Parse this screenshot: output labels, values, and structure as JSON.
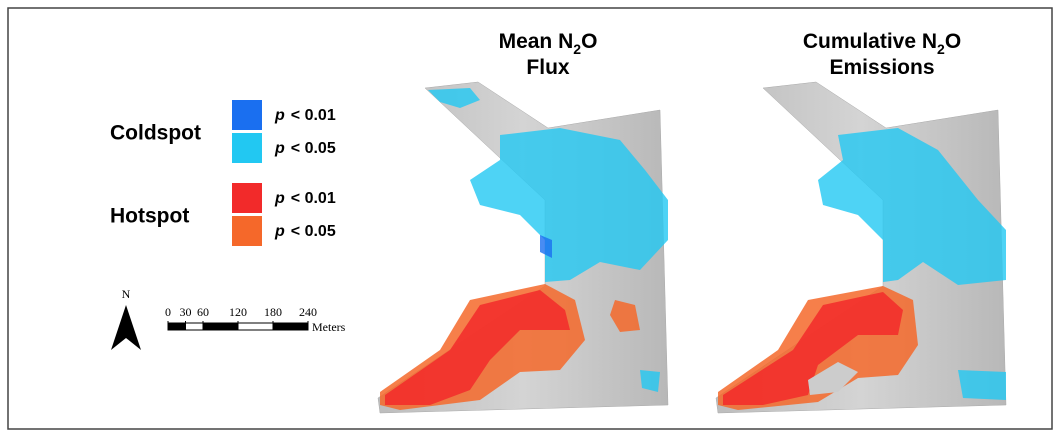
{
  "maps": [
    {
      "title": {
        "prefix": "Mean N",
        "subscript": "2",
        "suffix": "O",
        "line2": "Flux"
      }
    },
    {
      "title": {
        "prefix": "Cumulative N",
        "subscript": "2",
        "suffix": "O",
        "line2": "Emissions"
      }
    }
  ],
  "legend": {
    "groups": [
      {
        "label": "Coldspot",
        "items": [
          {
            "var": "p",
            "condition": "< 0.01",
            "color": "#1a6ff0"
          },
          {
            "var": "p",
            "condition": "< 0.05",
            "color": "#22c8f2"
          }
        ]
      },
      {
        "label": "Hotspot",
        "items": [
          {
            "var": "p",
            "condition": "< 0.01",
            "color": "#f22a2a"
          },
          {
            "var": "p",
            "condition": "< 0.05",
            "color": "#f5682a"
          }
        ]
      }
    ]
  },
  "north_arrow": {
    "label": "N"
  },
  "scale_bar": {
    "ticks": [
      0,
      30,
      60,
      120,
      180,
      240
    ],
    "unit": "Meters"
  }
}
